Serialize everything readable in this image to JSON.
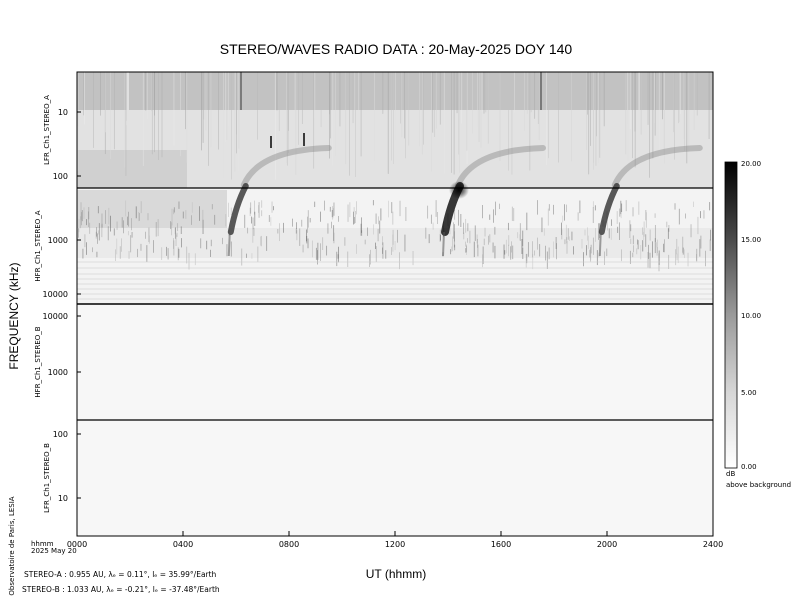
{
  "chart_data": {
    "type": "heatmap",
    "title": "STEREO/WAVES  RADIO  DATA : 20-May-2025  DOY 140",
    "ylabel": "FREQUENCY (kHz)",
    "xlabel": "UT (hhmm)",
    "x_ticks": [
      "0000",
      "0400",
      "0800",
      "1200",
      "1600",
      "2000",
      "2400"
    ],
    "x_range_hhmm": [
      "0000",
      "2400"
    ],
    "x_date_label": [
      "hhmm",
      "2025 May 20"
    ],
    "panels": [
      {
        "name": "LFR_Ch1_STEREO_A",
        "y_ticks": [
          "10",
          "100"
        ],
        "yscale": "log"
      },
      {
        "name": "HFR_Ch1_STEREO_A",
        "y_ticks": [
          "1000",
          "10000"
        ],
        "yscale": "log"
      },
      {
        "name": "HFR_Ch1_STEREO_B",
        "y_ticks": [
          "10000",
          "1000"
        ],
        "yscale": "log"
      },
      {
        "name": "LFR_Ch1_STEREO_B",
        "y_ticks": [
          "100",
          "10"
        ],
        "yscale": "log"
      }
    ],
    "colorbar": {
      "range": [
        0,
        20
      ],
      "ticks": [
        "20.00",
        "15.00",
        "10.00",
        "5.00",
        "0.00"
      ],
      "unit_label": "dB",
      "unit_sublabel": "above background",
      "colormap": "white-to-black"
    },
    "events_stereo_a": [
      {
        "type": "type III burst",
        "time_hhmm": "0555"
      },
      {
        "type": "type III burst",
        "time_hhmm": "1400"
      },
      {
        "type": "type III burst",
        "time_hhmm": "1955"
      }
    ],
    "credit": "Observatoire de Paris, LESIA",
    "positions": [
      {
        "label": "STEREO-A",
        "text": "STEREO-A : 0.955 AU, λₑ = 0.11°, lₑ = 35.99°/Earth"
      },
      {
        "label": "STEREO-B",
        "text": "STEREO-B : 1.033 AU, λₑ = -0.21°, lₑ = -37.48°/Earth"
      }
    ]
  },
  "colors": {
    "ink": "#000000",
    "background": "#ffffff",
    "panel_bg": "#f5f5f5"
  }
}
